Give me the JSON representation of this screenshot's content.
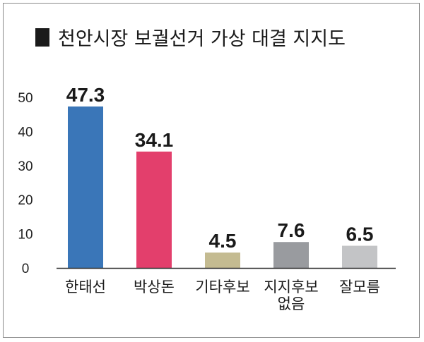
{
  "colors": {
    "title_marker": "#1a1a1a",
    "axis": "#333333",
    "bars": [
      "#3a76b8",
      "#e33f6c",
      "#c4bb91",
      "#999b9f",
      "#c3c4c6"
    ]
  },
  "chart_data": {
    "type": "bar",
    "title": "천안시장 보궐선거 가상 대결 지지도",
    "categories": [
      [
        "한태선"
      ],
      [
        "박상돈"
      ],
      [
        "기타후보"
      ],
      [
        "지지후보",
        "없음"
      ],
      [
        "잘모름"
      ]
    ],
    "values": [
      47.3,
      34.1,
      4.5,
      7.6,
      6.5
    ],
    "value_labels": [
      "47.3",
      "34.1",
      "4.5",
      "7.6",
      "6.5"
    ],
    "ylim": [
      0,
      50
    ],
    "yticks": [
      0,
      10,
      20,
      30,
      40,
      50
    ],
    "grid": false,
    "xlabel": "",
    "ylabel": ""
  }
}
